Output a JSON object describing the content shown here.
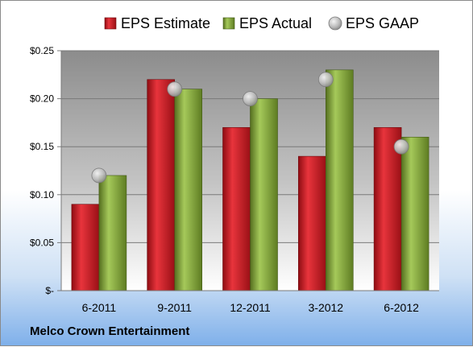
{
  "company": "Melco Crown Entertainment",
  "chart_data": {
    "type": "bar",
    "categories": [
      "6-2011",
      "9-2011",
      "12-2011",
      "3-2012",
      "6-2012"
    ],
    "series": [
      {
        "name": "EPS Estimate",
        "kind": "bar",
        "color": "#c0141c",
        "values": [
          0.09,
          0.22,
          0.17,
          0.14,
          0.17
        ]
      },
      {
        "name": "EPS Actual",
        "kind": "bar",
        "color": "#7aa12f",
        "values": [
          0.12,
          0.21,
          0.2,
          0.23,
          0.16
        ]
      },
      {
        "name": "EPS GAAP",
        "kind": "marker",
        "color": "#b8b8b8",
        "values": [
          0.12,
          0.21,
          0.2,
          0.22,
          0.15
        ]
      }
    ],
    "y_ticks": [
      "$-",
      "$0.05",
      "$0.10",
      "$0.15",
      "$0.20",
      "$0.25"
    ],
    "y_tick_values": [
      0,
      0.05,
      0.1,
      0.15,
      0.2,
      0.25
    ],
    "ylim": [
      0,
      0.25
    ],
    "grid": true,
    "legend": "top"
  }
}
